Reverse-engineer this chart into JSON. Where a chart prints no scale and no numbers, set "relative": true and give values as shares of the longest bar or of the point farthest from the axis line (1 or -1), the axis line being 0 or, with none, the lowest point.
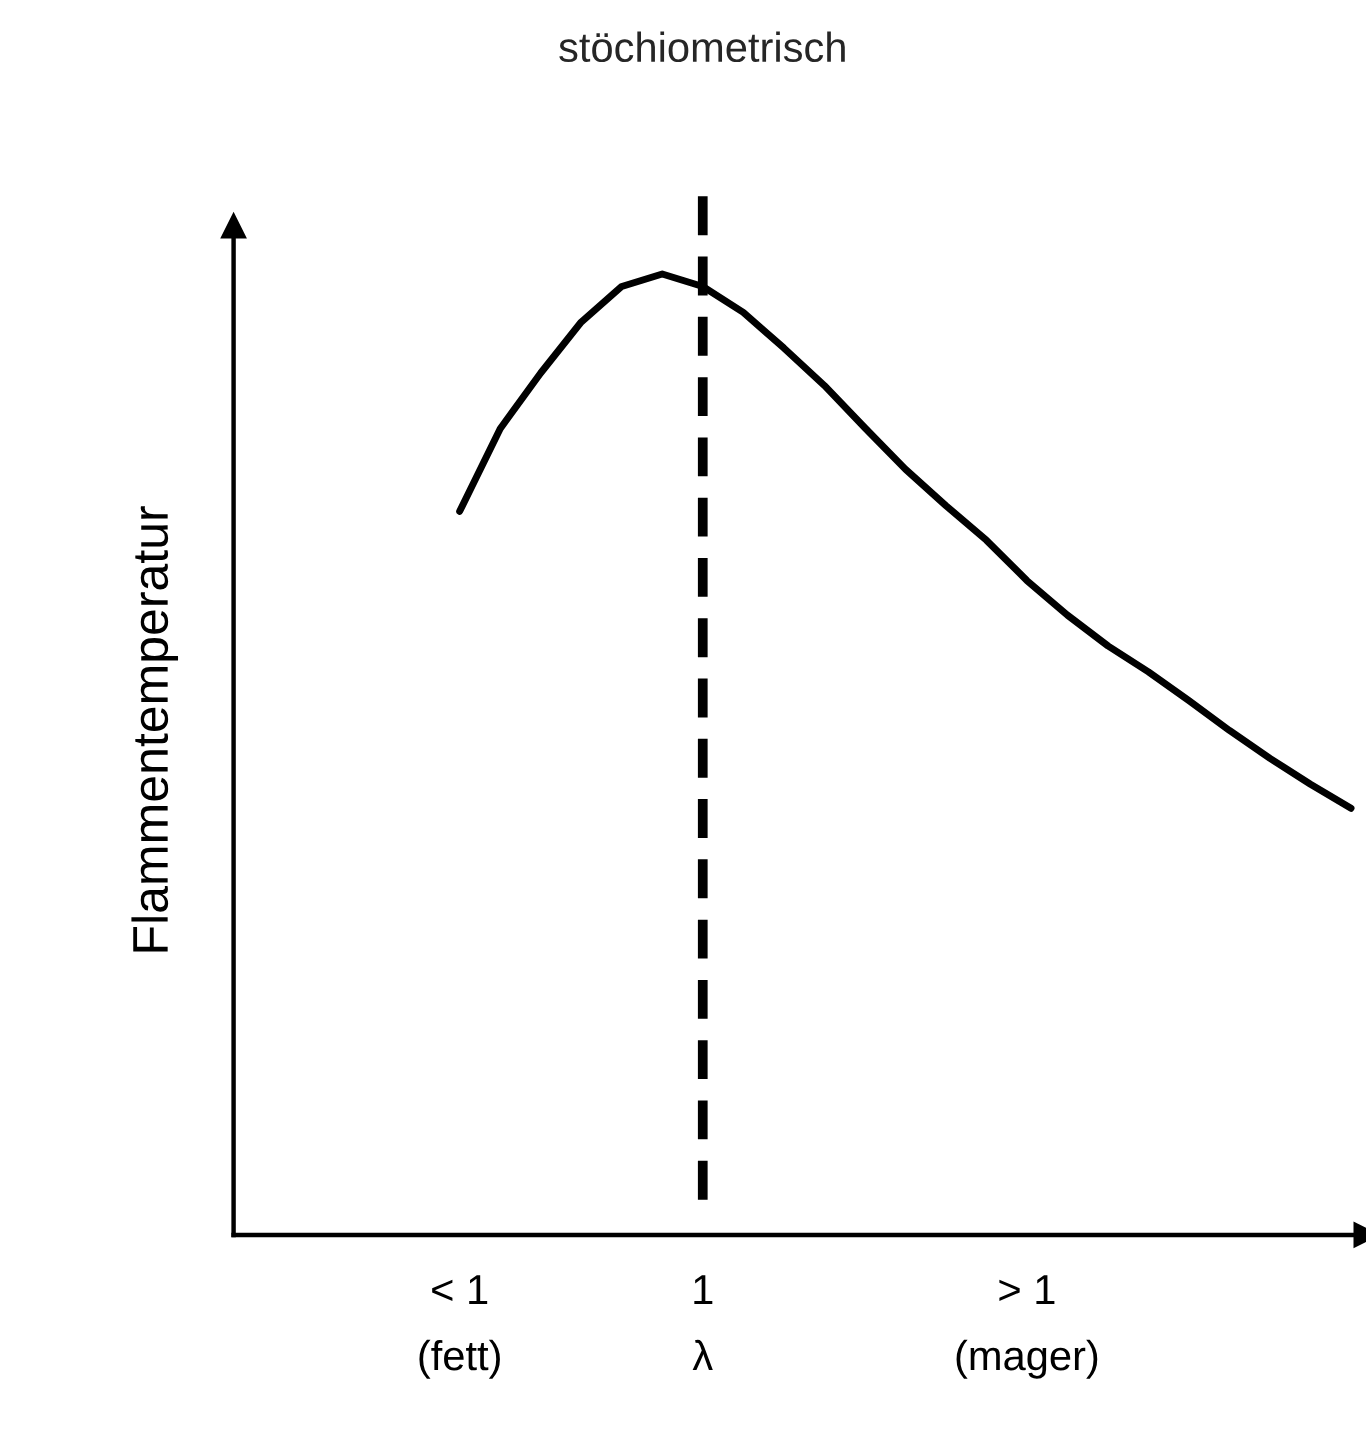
{
  "chart_data": {
    "type": "line",
    "relative": true,
    "ylabel": "Flammentemperatur",
    "categories": [
      "< 1\n(fett)",
      null,
      null,
      null,
      null,
      null,
      "1\nλ",
      null,
      null,
      null,
      null,
      null,
      null,
      null,
      "> 1\n(mager)",
      null,
      null,
      null,
      null,
      null,
      null,
      null,
      null
    ],
    "series": [
      {
        "color": "#000000",
        "values": [
          0.753,
          0.839,
          0.897,
          0.95,
          0.987,
          1,
          0.987,
          0.96,
          0.923,
          0.884,
          0.84,
          0.797,
          0.759,
          0.723,
          0.681,
          0.645,
          0.613,
          0.586,
          0.556,
          0.525,
          0.496,
          0.469,
          0.444
        ]
      }
    ],
    "ref_lines": [
      {
        "axis": "x",
        "value": "1\nλ",
        "label": "stöchiometrisch",
        "color": "#000000",
        "line_style": "dashed"
      }
    ],
    "grid": false,
    "marker": "none",
    "line_style": "solid",
    "legend": false
  }
}
